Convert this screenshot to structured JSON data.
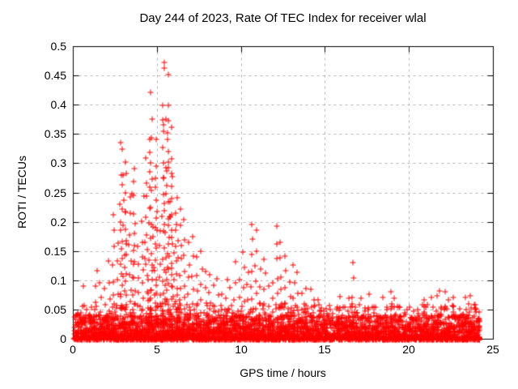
{
  "chart": {
    "title": "Day 244 of 2023, Rate Of TEC Index for receiver wlal",
    "xlabel": "GPS time / hours",
    "ylabel": "ROTI / TECUs"
  },
  "chart_data": {
    "type": "scatter",
    "title": "Day 244 of 2023, Rate Of TEC Index for receiver wlal",
    "xlabel": "GPS time / hours",
    "ylabel": "ROTI / TECUs",
    "marker": "plus",
    "marker_color": "#ff0000",
    "axis_color": "#000000",
    "grid": {
      "visible": true,
      "style": "dashed",
      "color": "#b0b0b0"
    },
    "legend": "none",
    "xlim": [
      0,
      25
    ],
    "ylim": [
      0,
      0.5
    ],
    "xtick_values": [
      0,
      5,
      10,
      15,
      20,
      25
    ],
    "xtick_labels": [
      "0",
      "5",
      "10",
      "15",
      "20",
      "25"
    ],
    "ytick_values": [
      0,
      0.05,
      0.1,
      0.15,
      0.2,
      0.25,
      0.3,
      0.35,
      0.4,
      0.45,
      0.5
    ],
    "ytick_labels": [
      "0",
      "0.05",
      "0.1",
      "0.15",
      "0.2",
      "0.25",
      "0.3",
      "0.35",
      "0.4",
      "0.45",
      "0.5"
    ],
    "x_data_range": [
      0,
      24.15
    ],
    "baseline_band": {
      "description": "dense scatter of ROTI values 0 to ~0.05 TECUs across all 24 hours",
      "max": 0.05
    },
    "peaks": [
      [
        2.25,
        0.215
      ],
      [
        2.8,
        0.345
      ],
      [
        3.5,
        0.3
      ],
      [
        4.5,
        0.42
      ],
      [
        5.3,
        0.478
      ],
      [
        5.6,
        0.35
      ],
      [
        6.25,
        0.22
      ],
      [
        7.0,
        0.17
      ],
      [
        9.5,
        0.13
      ],
      [
        10.6,
        0.2
      ],
      [
        12.1,
        0.195
      ],
      [
        12.5,
        0.145
      ],
      [
        13.0,
        0.13
      ],
      [
        16.4,
        0.135
      ],
      [
        21.9,
        0.085
      ]
    ],
    "envelope": [
      [
        0,
        0.045
      ],
      [
        0.25,
        0.05
      ],
      [
        0.5,
        0.09
      ],
      [
        0.75,
        0.055
      ],
      [
        1,
        0.06
      ],
      [
        1.25,
        0.12
      ],
      [
        1.5,
        0.1
      ],
      [
        1.75,
        0.09
      ],
      [
        2,
        0.13
      ],
      [
        2.25,
        0.215
      ],
      [
        2.5,
        0.16
      ],
      [
        2.75,
        0.345
      ],
      [
        3,
        0.31
      ],
      [
        3.25,
        0.24
      ],
      [
        3.5,
        0.3
      ],
      [
        3.75,
        0.16
      ],
      [
        4,
        0.2
      ],
      [
        4.25,
        0.3
      ],
      [
        4.5,
        0.42
      ],
      [
        4.75,
        0.33
      ],
      [
        5,
        0.19
      ],
      [
        5.25,
        0.478
      ],
      [
        5.5,
        0.44
      ],
      [
        5.75,
        0.35
      ],
      [
        6,
        0.25
      ],
      [
        6.25,
        0.22
      ],
      [
        6.5,
        0.2
      ],
      [
        6.75,
        0.16
      ],
      [
        7,
        0.17
      ],
      [
        7.25,
        0.14
      ],
      [
        7.5,
        0.155
      ],
      [
        7.75,
        0.12
      ],
      [
        8,
        0.11
      ],
      [
        8.25,
        0.09
      ],
      [
        8.5,
        0.105
      ],
      [
        8.75,
        0.08
      ],
      [
        9,
        0.1
      ],
      [
        9.25,
        0.09
      ],
      [
        9.5,
        0.13
      ],
      [
        9.75,
        0.1
      ],
      [
        10,
        0.15
      ],
      [
        10.25,
        0.12
      ],
      [
        10.5,
        0.2
      ],
      [
        10.75,
        0.185
      ],
      [
        11,
        0.12
      ],
      [
        11.25,
        0.14
      ],
      [
        11.5,
        0.09
      ],
      [
        11.75,
        0.1
      ],
      [
        12,
        0.195
      ],
      [
        12.25,
        0.17
      ],
      [
        12.5,
        0.145
      ],
      [
        12.75,
        0.1
      ],
      [
        13,
        0.13
      ],
      [
        13.25,
        0.11
      ],
      [
        13.5,
        0.08
      ],
      [
        13.75,
        0.09
      ],
      [
        14,
        0.085
      ],
      [
        14.25,
        0.07
      ],
      [
        14.5,
        0.07
      ],
      [
        14.75,
        0.06
      ],
      [
        15,
        0.065
      ],
      [
        15.25,
        0.055
      ],
      [
        15.5,
        0.06
      ],
      [
        15.75,
        0.075
      ],
      [
        16,
        0.06
      ],
      [
        16.25,
        0.07
      ],
      [
        16.5,
        0.135
      ],
      [
        16.75,
        0.06
      ],
      [
        17,
        0.07
      ],
      [
        17.25,
        0.065
      ],
      [
        17.5,
        0.08
      ],
      [
        17.75,
        0.06
      ],
      [
        18,
        0.065
      ],
      [
        18.25,
        0.07
      ],
      [
        18.5,
        0.06
      ],
      [
        18.75,
        0.085
      ],
      [
        19,
        0.07
      ],
      [
        19.25,
        0.06
      ],
      [
        19.5,
        0.06
      ],
      [
        19.75,
        0.065
      ],
      [
        20,
        0.065
      ],
      [
        20.25,
        0.06
      ],
      [
        20.5,
        0.06
      ],
      [
        20.75,
        0.07
      ],
      [
        21,
        0.065
      ],
      [
        21.25,
        0.07
      ],
      [
        21.5,
        0.075
      ],
      [
        21.75,
        0.085
      ],
      [
        22,
        0.08
      ],
      [
        22.25,
        0.07
      ],
      [
        22.5,
        0.07
      ],
      [
        22.75,
        0.065
      ],
      [
        23,
        0.065
      ],
      [
        23.25,
        0.07
      ],
      [
        23.5,
        0.075
      ],
      [
        23.75,
        0.065
      ],
      [
        24,
        0.06
      ]
    ]
  }
}
